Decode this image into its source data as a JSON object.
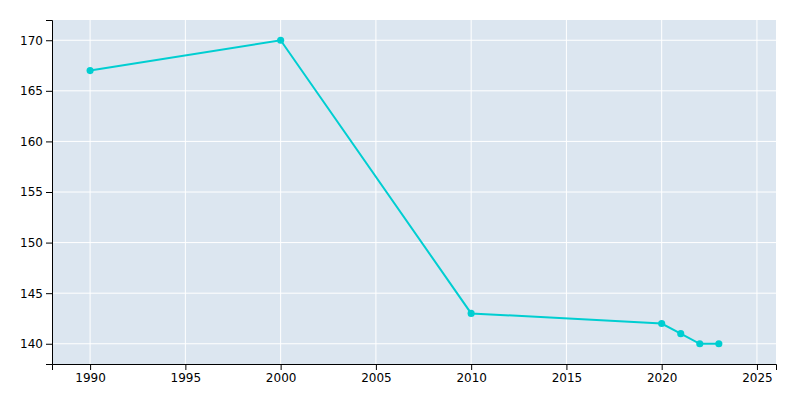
{
  "chart_data": {
    "type": "line",
    "x": [
      1990,
      2000,
      2010,
      2020,
      2021,
      2022,
      2023
    ],
    "values": [
      167,
      170,
      143,
      142,
      141,
      140,
      140
    ],
    "color": "#00CED1",
    "marker": "circle",
    "xlim": [
      1988,
      2026
    ],
    "ylim": [
      138,
      172
    ],
    "xticks": [
      1990,
      1995,
      2000,
      2005,
      2010,
      2015,
      2020,
      2025
    ],
    "yticks": [
      140,
      145,
      150,
      155,
      160,
      165,
      170
    ],
    "grid": true
  }
}
